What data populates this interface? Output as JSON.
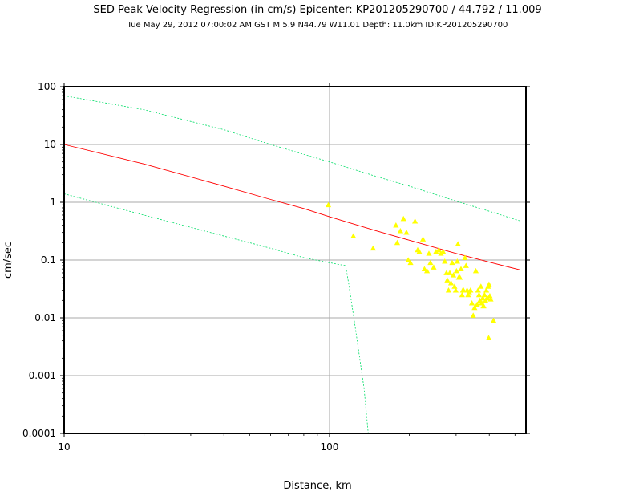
{
  "chart_data": {
    "type": "scatter",
    "title": "SED Peak Velocity Regression (in cm/s) Epicenter: KP201205290700 / 44.792 / 11.009",
    "subtitle": "Tue May 29, 2012 07:00:02 AM GST    M 5.9    N44.79 W11.01   Depth: 11.0km   ID:KP201205290700",
    "xlabel": "Distance, km",
    "ylabel": "cm/sec",
    "xscale": "log",
    "yscale": "log",
    "xlim": [
      10,
      550
    ],
    "ylim": [
      0.0001,
      100
    ],
    "grid": true,
    "x_tick_labels": [
      "10",
      "100"
    ],
    "y_tick_labels": [
      "0.0001",
      "0.001",
      "0.01",
      "0.1",
      "1",
      "10",
      "100"
    ],
    "colors": {
      "regression": "#ff0000",
      "bounds": "#00dd66",
      "observations": "#ffff00",
      "frame": "#000000",
      "grid": "#aaaaaa"
    },
    "series": [
      {
        "style": "line",
        "x": [
          10,
          20,
          40,
          60,
          80,
          100,
          150,
          200,
          300,
          400,
          520
        ],
        "y": [
          10.0,
          4.6,
          1.9,
          1.12,
          0.78,
          0.56,
          0.32,
          0.22,
          0.13,
          0.092,
          0.068
        ]
      },
      {
        "style": "dashed-line",
        "x": [
          10,
          20,
          40,
          60,
          100,
          150,
          200,
          300,
          400,
          520
        ],
        "y": [
          70,
          40,
          18,
          10,
          5,
          2.8,
          1.9,
          1.05,
          0.7,
          0.48
        ]
      },
      {
        "style": "dashed-line",
        "x": [
          10,
          20,
          40,
          60,
          80,
          100,
          115,
          118,
          125,
          135,
          140
        ],
        "y": [
          1.4,
          0.6,
          0.26,
          0.16,
          0.11,
          0.09,
          0.08,
          0.04,
          0.007,
          0.0006,
          0.0001
        ]
      },
      {
        "style": "markers",
        "x": [
          99,
          123,
          146,
          178,
          180,
          185,
          190,
          195,
          198,
          202,
          210,
          215,
          218,
          225,
          228,
          233,
          237,
          240,
          247,
          252,
          258,
          263,
          268,
          272,
          276,
          278,
          281,
          284,
          287,
          290,
          293,
          296,
          299,
          301,
          303,
          305,
          307,
          310,
          313,
          316,
          318,
          320,
          324,
          327,
          330,
          333,
          336,
          340,
          344,
          348,
          352,
          356,
          360,
          363,
          366,
          369,
          372,
          375,
          378,
          381,
          384,
          387,
          390,
          393,
          396,
          399,
          402,
          405,
          415,
          398,
          380
        ],
        "y": [
          0.9,
          0.26,
          0.16,
          0.4,
          0.2,
          0.32,
          0.52,
          0.3,
          0.1,
          0.09,
          0.47,
          0.15,
          0.14,
          0.23,
          0.07,
          0.065,
          0.13,
          0.09,
          0.075,
          0.14,
          0.15,
          0.13,
          0.14,
          0.095,
          0.06,
          0.045,
          0.03,
          0.06,
          0.04,
          0.09,
          0.055,
          0.035,
          0.03,
          0.065,
          0.095,
          0.19,
          0.05,
          0.05,
          0.07,
          0.025,
          0.03,
          0.03,
          0.11,
          0.08,
          0.03,
          0.025,
          0.028,
          0.03,
          0.018,
          0.011,
          0.015,
          0.065,
          0.017,
          0.03,
          0.025,
          0.02,
          0.035,
          0.018,
          0.022,
          0.016,
          0.025,
          0.02,
          0.03,
          0.022,
          0.035,
          0.038,
          0.024,
          0.021,
          0.009,
          0.0045,
          0.016
        ]
      }
    ]
  }
}
